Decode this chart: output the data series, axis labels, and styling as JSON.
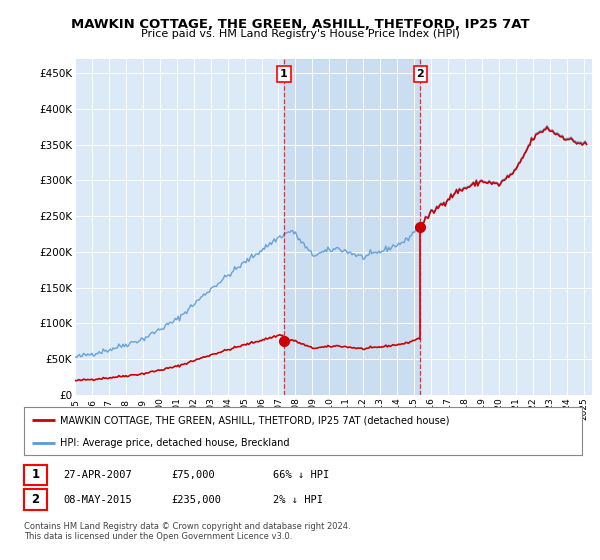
{
  "title": "MAWKIN COTTAGE, THE GREEN, ASHILL, THETFORD, IP25 7AT",
  "subtitle": "Price paid vs. HM Land Registry's House Price Index (HPI)",
  "ylabel_ticks": [
    "£0",
    "£50K",
    "£100K",
    "£150K",
    "£200K",
    "£250K",
    "£300K",
    "£350K",
    "£400K",
    "£450K"
  ],
  "ytick_vals": [
    0,
    50000,
    100000,
    150000,
    200000,
    250000,
    300000,
    350000,
    400000,
    450000
  ],
  "ylim": [
    0,
    470000
  ],
  "xlim_start": 1995.0,
  "xlim_end": 2025.5,
  "plot_bg": "#dce9f7",
  "shade_color": "#c5d9ee",
  "fig_bg": "#ffffff",
  "hpi_color": "#5b9bd5",
  "price_color": "#cc0000",
  "sale1_x": 2007.32,
  "sale1_y": 75000,
  "sale2_x": 2015.36,
  "sale2_y": 235000,
  "legend_price_label": "MAWKIN COTTAGE, THE GREEN, ASHILL, THETFORD, IP25 7AT (detached house)",
  "legend_hpi_label": "HPI: Average price, detached house, Breckland",
  "note1_date": "27-APR-2007",
  "note1_price": "£75,000",
  "note1_hpi": "66% ↓ HPI",
  "note2_date": "08-MAY-2015",
  "note2_price": "£235,000",
  "note2_hpi": "2% ↓ HPI",
  "footnote": "Contains HM Land Registry data © Crown copyright and database right 2024.\nThis data is licensed under the Open Government Licence v3.0."
}
